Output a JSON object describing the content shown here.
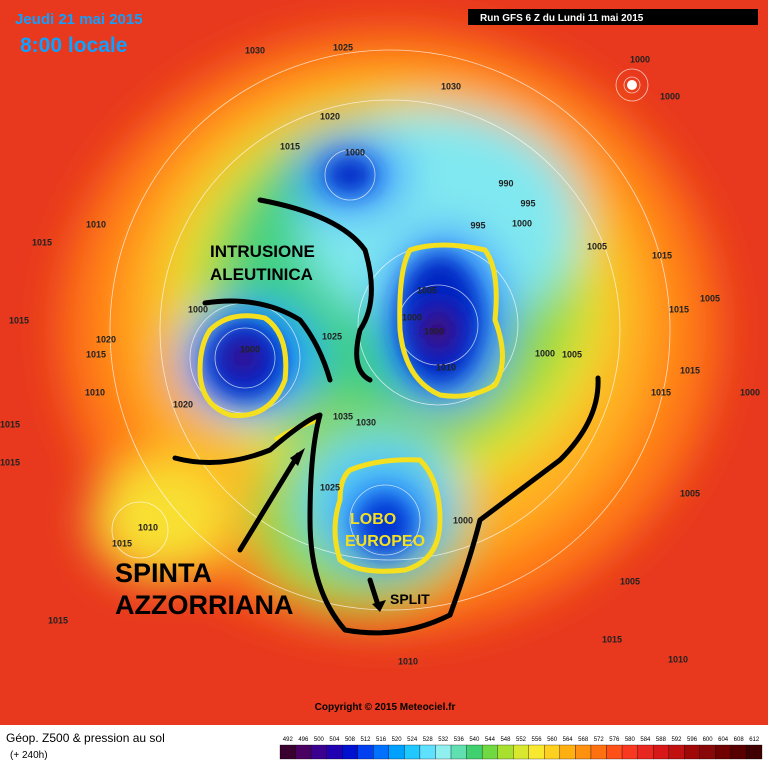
{
  "header": {
    "date": "Jeudi 21 mai 2015",
    "time": "8:00 locale",
    "run": "Run GFS 6 Z du Lundi 11 mai 2015"
  },
  "annotations": {
    "intrusion": [
      "INTRUSIONE",
      "ALEUTINICA"
    ],
    "push": [
      "SPINTA",
      "AZZORRIANA"
    ],
    "lobe": [
      "LOBO",
      "EUROPEO"
    ],
    "split": "SPLIT"
  },
  "isobar_labels": [
    "1030",
    "1025",
    "1030",
    "1000",
    "1000",
    "1020",
    "1015",
    "1000",
    "990",
    "995",
    "1000",
    "995",
    "1005",
    "1015",
    "1015",
    "1010",
    "1005",
    "1005",
    "1015",
    "1015",
    "1020",
    "1015",
    "1000",
    "1000",
    "1000",
    "1000",
    "1025",
    "1010",
    "1000",
    "1005",
    "1015",
    "1015",
    "1000",
    "1010",
    "1020",
    "1015",
    "1035",
    "1030",
    "1015",
    "1005",
    "1025",
    "1000",
    "1010",
    "1015",
    "1005",
    "1015",
    "1010",
    "1010",
    "1015"
  ],
  "copyright": "Copyright © 2015 Meteociel.fr",
  "footer": {
    "title": "Géop. Z500 & pression au sol",
    "lead": "(+ 240h)"
  },
  "scale": {
    "values": [
      492,
      496,
      500,
      504,
      508,
      512,
      516,
      520,
      524,
      528,
      532,
      536,
      540,
      544,
      548,
      552,
      556,
      560,
      564,
      568,
      572,
      576,
      580,
      584,
      588,
      592,
      596,
      600,
      604,
      608,
      612
    ],
    "colors": [
      "#3a0030",
      "#4a0060",
      "#3a0090",
      "#2000b0",
      "#0010d0",
      "#0040f0",
      "#0070ff",
      "#00a0ff",
      "#20c8ff",
      "#60e0ff",
      "#90f0f0",
      "#60e0b0",
      "#40d070",
      "#70d840",
      "#a8e030",
      "#d8e830",
      "#f8e830",
      "#ffd020",
      "#ffb010",
      "#ff9010",
      "#ff7010",
      "#ff5018",
      "#f83820",
      "#e82820",
      "#d81818",
      "#c01010",
      "#a00808",
      "#880808",
      "#700000",
      "#580000",
      "#400000"
    ]
  }
}
